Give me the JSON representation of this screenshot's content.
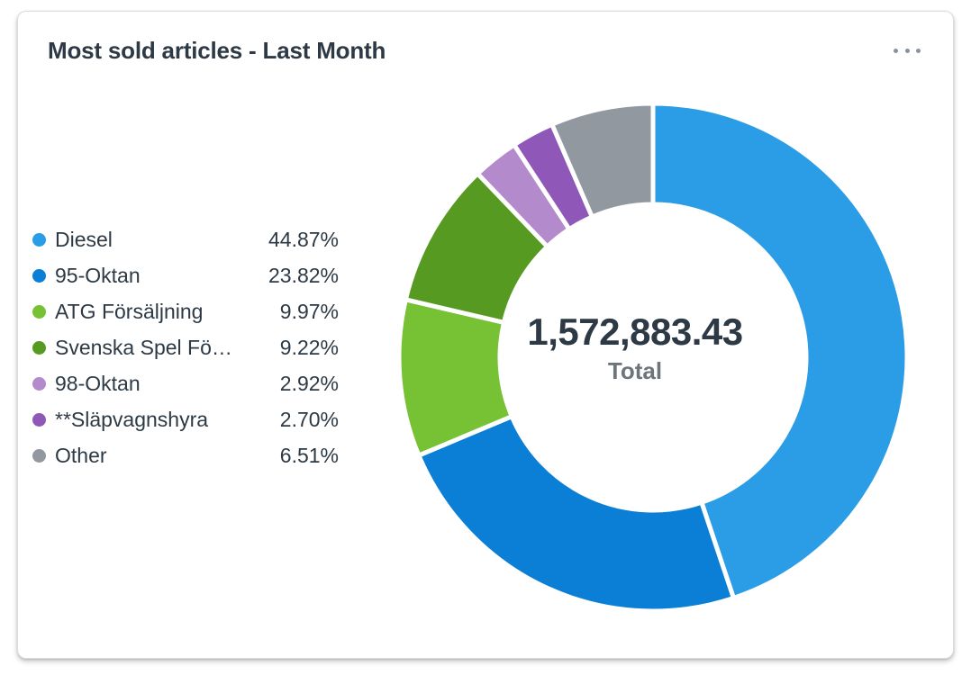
{
  "card": {
    "title": "Most sold articles - Last Month",
    "more_icon": "more-horizontal-icon"
  },
  "chart_data": {
    "type": "pie",
    "style": "donut",
    "title": "Most sold articles - Last Month",
    "center_value": "1,572,883.43",
    "center_label": "Total",
    "legend_position": "left",
    "slices": [
      {
        "label": "Diesel",
        "display_label": "Diesel",
        "value": 44.87,
        "value_text": "44.87%",
        "color": "#2b9de6"
      },
      {
        "label": "95-Oktan",
        "display_label": "95-Oktan",
        "value": 23.82,
        "value_text": "23.82%",
        "color": "#0b7fd6"
      },
      {
        "label": "ATG Försäljning",
        "display_label": "ATG Försäljning",
        "value": 9.97,
        "value_text": "9.97%",
        "color": "#76c234"
      },
      {
        "label": "Svenska Spel Fö…",
        "display_label": "Svenska Spel Fö…",
        "value": 9.22,
        "value_text": "9.22%",
        "color": "#579a22"
      },
      {
        "label": "98-Oktan",
        "display_label": "98-Oktan",
        "value": 2.92,
        "value_text": "2.92%",
        "color": "#b38bcc"
      },
      {
        "label": "**Släpvagnshyra",
        "display_label": "**Släpvagnshyra",
        "value": 2.7,
        "value_text": "2.70%",
        "color": "#8f57b8"
      },
      {
        "label": "Other",
        "display_label": "Other",
        "value": 6.51,
        "value_text": "6.51%",
        "color": "#9198a0"
      }
    ]
  }
}
